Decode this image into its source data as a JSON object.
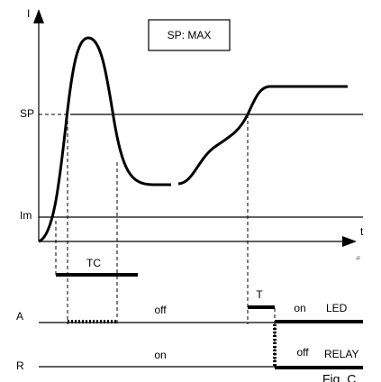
{
  "axes": {
    "y_label": "I",
    "x_label": "t",
    "x_note": "fc"
  },
  "box": "SP: MAX",
  "levels": {
    "sp": "SP",
    "im": "Im"
  },
  "timers": {
    "tc": "TC",
    "t": "T"
  },
  "outputs": [
    {
      "name": "A",
      "before": "off",
      "after": "on",
      "device": "LED"
    },
    {
      "name": "R",
      "before": "on",
      "after": "off",
      "device": "RELAY"
    }
  ],
  "caption": "Fig. C"
}
